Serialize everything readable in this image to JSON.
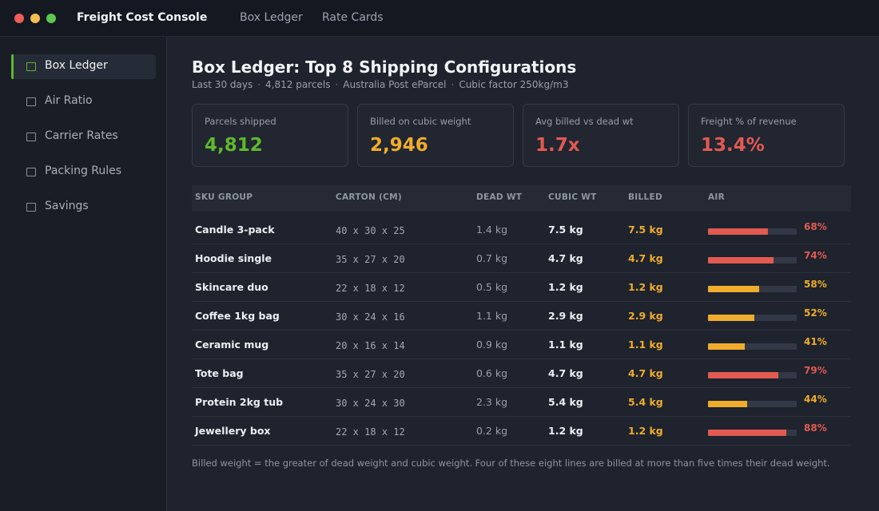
{
  "app": {
    "title": "Freight Cost Console",
    "nav": [
      "Box Ledger",
      "Rate Cards"
    ]
  },
  "sidebar": {
    "items": [
      {
        "label": "Box Ledger",
        "active": true
      },
      {
        "label": "Air Ratio",
        "active": false
      },
      {
        "label": "Carrier Rates",
        "active": false
      },
      {
        "label": "Packing Rules",
        "active": false
      },
      {
        "label": "Savings",
        "active": false
      }
    ]
  },
  "page": {
    "title": "Box Ledger: Top 8 Shipping Configurations",
    "subtitle": [
      "Last 30 days",
      "4,812 parcels",
      "Australia Post eParcel",
      "Cubic factor 250kg/m3"
    ]
  },
  "cards": [
    {
      "label": "Parcels shipped",
      "value": "4,812",
      "color": "#5fb82e"
    },
    {
      "label": "Billed on cubic weight",
      "value": "2,946",
      "color": "#f0ac2c"
    },
    {
      "label": "Avg billed vs dead wt",
      "value": "1.7x",
      "color": "#e25a52"
    },
    {
      "label": "Freight % of revenue",
      "value": "13.4%",
      "color": "#e25a52"
    }
  ],
  "table": {
    "headers": [
      "SKU GROUP",
      "CARTON (CM)",
      "DEAD WT",
      "CUBIC WT",
      "BILLED",
      "AIR"
    ],
    "rows": [
      {
        "sku": "Candle 3-pack",
        "carton": "40 x 30 x 25",
        "dead": "1.4 kg",
        "cubic": "7.5 kg",
        "billed": "7.5 kg",
        "air": "68%",
        "air_value": 68,
        "air_color": "#e25a52"
      },
      {
        "sku": "Hoodie single",
        "carton": "35 x 27 x 20",
        "dead": "0.7 kg",
        "cubic": "4.7 kg",
        "billed": "4.7 kg",
        "air": "74%",
        "air_value": 74,
        "air_color": "#e25a52"
      },
      {
        "sku": "Skincare duo",
        "carton": "22 x 18 x 12",
        "dead": "0.5 kg",
        "cubic": "1.2 kg",
        "billed": "1.2 kg",
        "air": "58%",
        "air_value": 58,
        "air_color": "#f0ac2c"
      },
      {
        "sku": "Coffee 1kg bag",
        "carton": "30 x 24 x 16",
        "dead": "1.1 kg",
        "cubic": "2.9 kg",
        "billed": "2.9 kg",
        "air": "52%",
        "air_value": 52,
        "air_color": "#f0ac2c"
      },
      {
        "sku": "Ceramic mug",
        "carton": "20 x 16 x 14",
        "dead": "0.9 kg",
        "cubic": "1.1 kg",
        "billed": "1.1 kg",
        "air": "41%",
        "air_value": 41,
        "air_color": "#f0ac2c"
      },
      {
        "sku": "Tote bag",
        "carton": "35 x 27 x 20",
        "dead": "0.6 kg",
        "cubic": "4.7 kg",
        "billed": "4.7 kg",
        "air": "79%",
        "air_value": 79,
        "air_color": "#e25a52"
      },
      {
        "sku": "Protein 2kg tub",
        "carton": "30 x 24 x 30",
        "dead": "2.3 kg",
        "cubic": "5.4 kg",
        "billed": "5.4 kg",
        "air": "44%",
        "air_value": 44,
        "air_color": "#f0ac2c"
      },
      {
        "sku": "Jewellery box",
        "carton": "22 x 18 x 12",
        "dead": "0.2 kg",
        "cubic": "1.2 kg",
        "billed": "1.2 kg",
        "air": "88%",
        "air_value": 88,
        "air_color": "#e25a52"
      }
    ]
  },
  "footnote": "Billed weight = the greater of dead weight and cubic weight. Four of these eight lines are billed at more than five times their dead weight."
}
